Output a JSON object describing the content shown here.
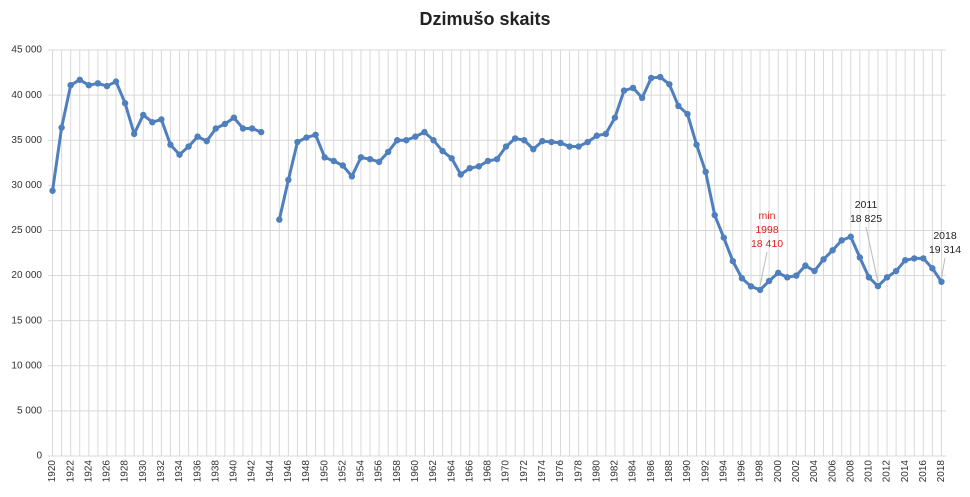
{
  "chart_data": {
    "type": "line",
    "title": "Dzimušo skaits",
    "categories": [
      "1920",
      null,
      "1922",
      null,
      "1924",
      null,
      "1926",
      null,
      "1928",
      null,
      "1930",
      null,
      "1932",
      null,
      "1934",
      null,
      "1936",
      null,
      "1938",
      null,
      "1940",
      null,
      "1942",
      null,
      "1944",
      null,
      "1946",
      null,
      "1948",
      null,
      "1950",
      null,
      "1952",
      null,
      "1954",
      null,
      "1956",
      null,
      "1958",
      null,
      "1960",
      null,
      "1962",
      null,
      "1964",
      null,
      "1966",
      null,
      "1968",
      null,
      "1970",
      null,
      "1972",
      null,
      "1974",
      null,
      "1976",
      null,
      "1978",
      null,
      "1980",
      null,
      "1982",
      null,
      "1984",
      null,
      "1986",
      null,
      "1988",
      null,
      "1990",
      null,
      "1992",
      null,
      "1994",
      null,
      "1996",
      null,
      "1998",
      null,
      "2000",
      null,
      "2002",
      null,
      "2004",
      null,
      "2006",
      null,
      "2008",
      null,
      "2010",
      null,
      "2012",
      null,
      "2014",
      null,
      "2016",
      null,
      "2018"
    ],
    "series": [
      {
        "name": "Dzimušo skaits",
        "color": "#4f7fbc",
        "values": [
          29400,
          36400,
          41100,
          41700,
          41100,
          41300,
          41000,
          41500,
          39100,
          35700,
          37800,
          37000,
          37300,
          34500,
          33400,
          34300,
          35400,
          34900,
          36300,
          36800,
          37500,
          36300,
          36300,
          35900,
          null,
          26200,
          30600,
          34800,
          35300,
          35600,
          33100,
          32700,
          32200,
          31000,
          33100,
          32900,
          32600,
          33700,
          35000,
          35000,
          35400,
          35900,
          35000,
          33800,
          33000,
          31200,
          31900,
          32100,
          32700,
          32900,
          34300,
          35200,
          35000,
          34000,
          34900,
          34800,
          34700,
          34300,
          34300,
          34800,
          35500,
          35700,
          37500,
          40500,
          40800,
          39700,
          41900,
          42000,
          41200,
          38800,
          37900,
          34500,
          31500,
          26700,
          24200,
          21600,
          19700,
          18800,
          18410,
          19400,
          20300,
          19800,
          20000,
          21100,
          20500,
          21800,
          22800,
          23900,
          24300,
          22000,
          19800,
          18825,
          19800,
          20500,
          21700,
          21900,
          21900,
          20800,
          19314
        ]
      }
    ],
    "ylim": [
      0,
      45000
    ],
    "yticks": [
      0,
      {
        "value": 5000,
        "label": "5 000"
      },
      {
        "value": 10000,
        "label": "10 000"
      },
      {
        "value": 15000,
        "label": "15 000"
      },
      {
        "value": 20000,
        "label": "20 000"
      },
      {
        "value": 25000,
        "label": "25 000"
      },
      {
        "value": 30000,
        "label": "30 000"
      },
      {
        "value": 35000,
        "label": "35 000"
      },
      {
        "value": 40000,
        "label": "40 000"
      },
      {
        "value": 45000,
        "label": "45 000"
      }
    ],
    "grid": true,
    "annotations": [
      {
        "lines": [
          "min",
          "1998",
          "18 410"
        ],
        "color": "#e02020"
      },
      {
        "lines": [
          "2011",
          "18 825"
        ],
        "color": "#222222"
      },
      {
        "lines": [
          "2018",
          "19 314"
        ],
        "color": "#222222"
      }
    ]
  }
}
